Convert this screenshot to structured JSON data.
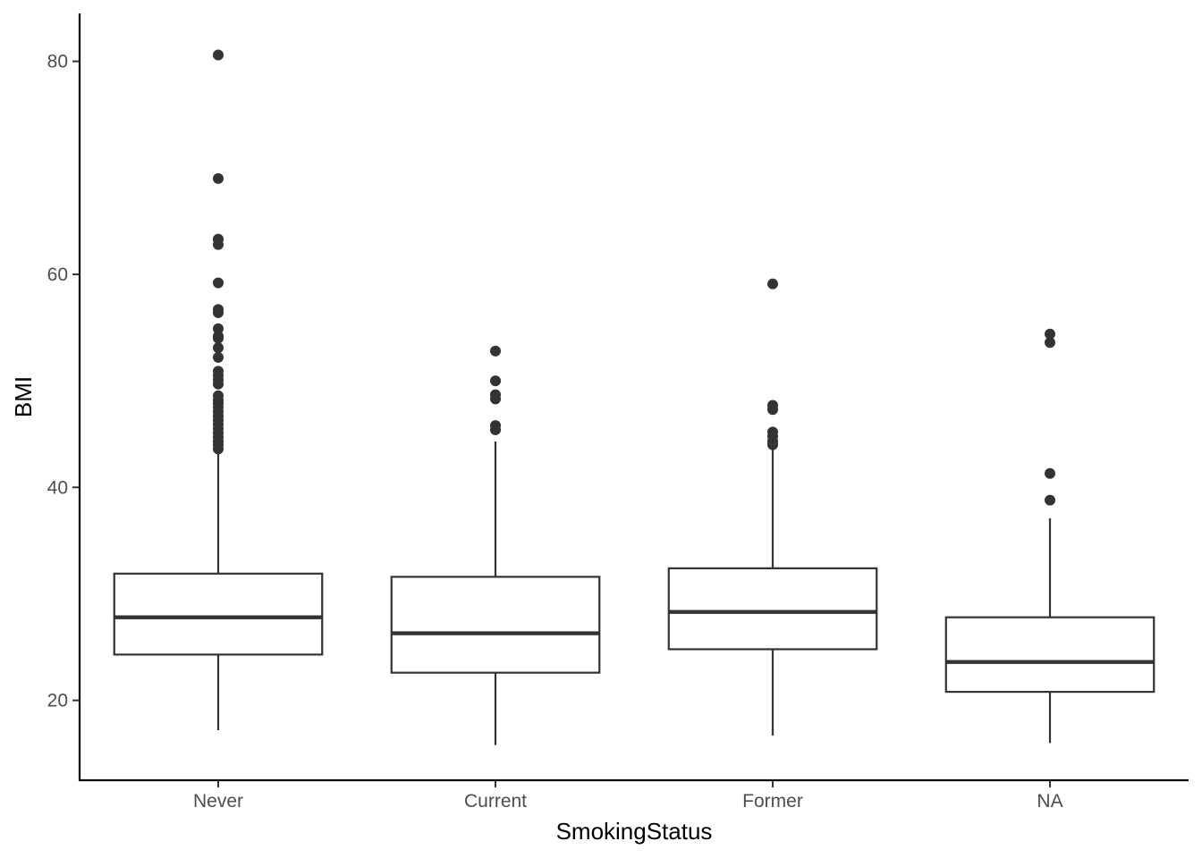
{
  "chart_data": {
    "type": "boxplot",
    "xlabel": "SmokingStatus",
    "ylabel": "BMI",
    "ylim": [
      12.5,
      84.5
    ],
    "y_ticks": [
      20,
      40,
      60,
      80
    ],
    "grid": false,
    "legend": "none",
    "categories": [
      "Never",
      "Current",
      "Former",
      "NA"
    ],
    "boxes": [
      {
        "name": "Never",
        "whisker_low": 17.2,
        "q1": 24.3,
        "median": 27.8,
        "q3": 31.9,
        "whisker_high": 43.3,
        "outliers": [
          80.6,
          69.0,
          63.3,
          62.8,
          59.2,
          56.7,
          56.4,
          54.9,
          54.2,
          54.0,
          53.1,
          52.2,
          50.9,
          50.5,
          50.1,
          49.7,
          48.6,
          48.2,
          47.9,
          47.5,
          47.1,
          46.7,
          46.3,
          45.9,
          45.5,
          45.1,
          44.7,
          44.3,
          44.0,
          43.6
        ]
      },
      {
        "name": "Current",
        "whisker_low": 15.8,
        "q1": 22.6,
        "median": 26.3,
        "q3": 31.6,
        "whisker_high": 44.3,
        "outliers": [
          52.8,
          50.0,
          48.7,
          48.3,
          45.8,
          45.4
        ]
      },
      {
        "name": "Former",
        "whisker_low": 16.7,
        "q1": 24.8,
        "median": 28.3,
        "q3": 32.4,
        "whisker_high": 43.9,
        "outliers": [
          59.1,
          47.7,
          47.3,
          45.2,
          44.8,
          44.3,
          44.0
        ]
      },
      {
        "name": "NA",
        "whisker_low": 16.0,
        "q1": 20.8,
        "median": 23.6,
        "q3": 27.8,
        "whisker_high": 37.1,
        "outliers": [
          54.4,
          53.6,
          41.3,
          38.8
        ]
      }
    ],
    "colors": {
      "box_stroke": "#333333",
      "axis": "#000000",
      "tick_text": "#4d4d4d",
      "point": "#333333",
      "fill": "#ffffff"
    }
  }
}
